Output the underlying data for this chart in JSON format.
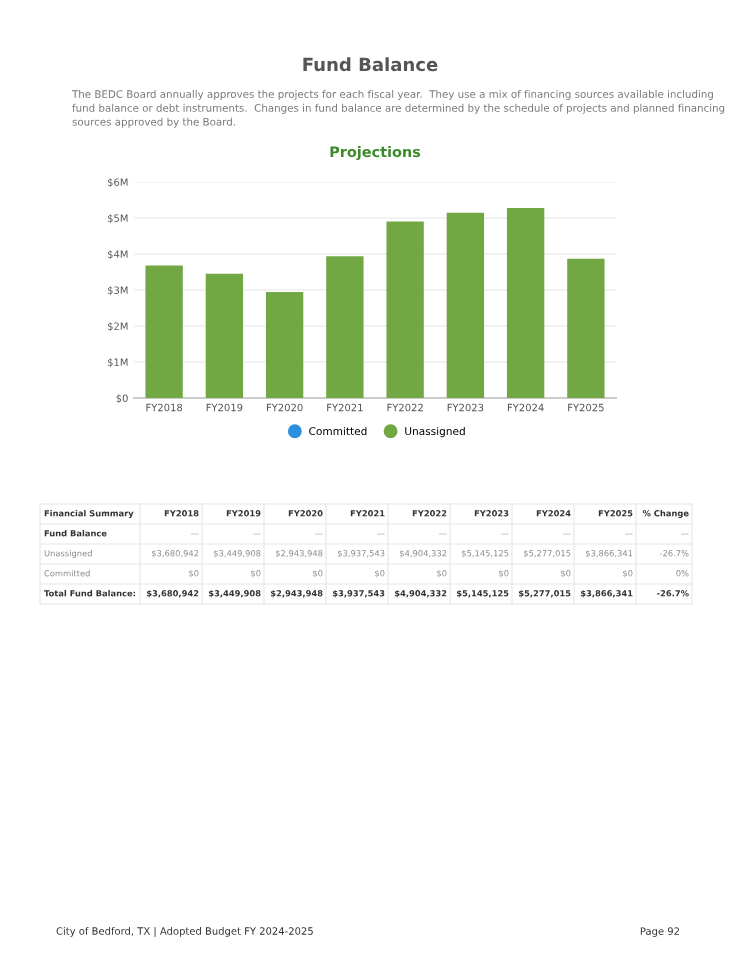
{
  "chart_data": {
    "type": "bar",
    "title": "Projections",
    "stacked": true,
    "categories": [
      "FY2018",
      "FY2019",
      "FY2020",
      "FY2021",
      "FY2022",
      "FY2023",
      "FY2024",
      "FY2025"
    ],
    "series": [
      {
        "name": "Committed",
        "color": "#2f8fdf",
        "values": [
          0,
          0,
          0,
          0,
          0,
          0,
          0,
          0
        ]
      },
      {
        "name": "Unassigned",
        "color": "#72a844",
        "values": [
          3680942,
          3449908,
          2943948,
          3937543,
          4904332,
          5145125,
          5277015,
          3866341
        ]
      }
    ],
    "ylim": [
      0,
      6000000
    ],
    "yticks": [
      {
        "value": 0,
        "label": "$0"
      },
      {
        "value": 1000000,
        "label": "$1M"
      },
      {
        "value": 2000000,
        "label": "$2M"
      },
      {
        "value": 3000000,
        "label": "$3M"
      },
      {
        "value": 4000000,
        "label": "$4M"
      },
      {
        "value": 5000000,
        "label": "$5M"
      },
      {
        "value": 6000000,
        "label": "$6M"
      }
    ],
    "grid": "y",
    "legend": "bottom",
    "annotations": [
      "Fund Balance",
      "The BEDC Board annually approves the projects for each fiscal year.  They use a mix of financing sources available including fund balance or debt instruments.  Changes in fund balance are determined by the schedule of projects and planned financing sources approved by the Board.",
      "City of Bedford, TX | Adopted Budget FY 2024-2025",
      "Page 92",
      "Financial Summary",
      "% Change",
      "Fund Balance",
      "Total Fund Balance:",
      "—",
      "$3,680,942",
      "$3,449,908",
      "$2,943,948",
      "$3,937,543",
      "$4,904,332",
      "$5,145,125",
      "$5,277,015",
      "$3,866,341",
      "-26.7%",
      "$0",
      "$0",
      "$0",
      "$0",
      "$0",
      "$0",
      "$0",
      "$0",
      "0%",
      "$3,680,942",
      "$3,449,908",
      "$2,943,948",
      "$3,937,543",
      "$4,904,332",
      "$5,145,125",
      "$5,277,015",
      "$3,866,341",
      "-26.7%"
    ]
  }
}
